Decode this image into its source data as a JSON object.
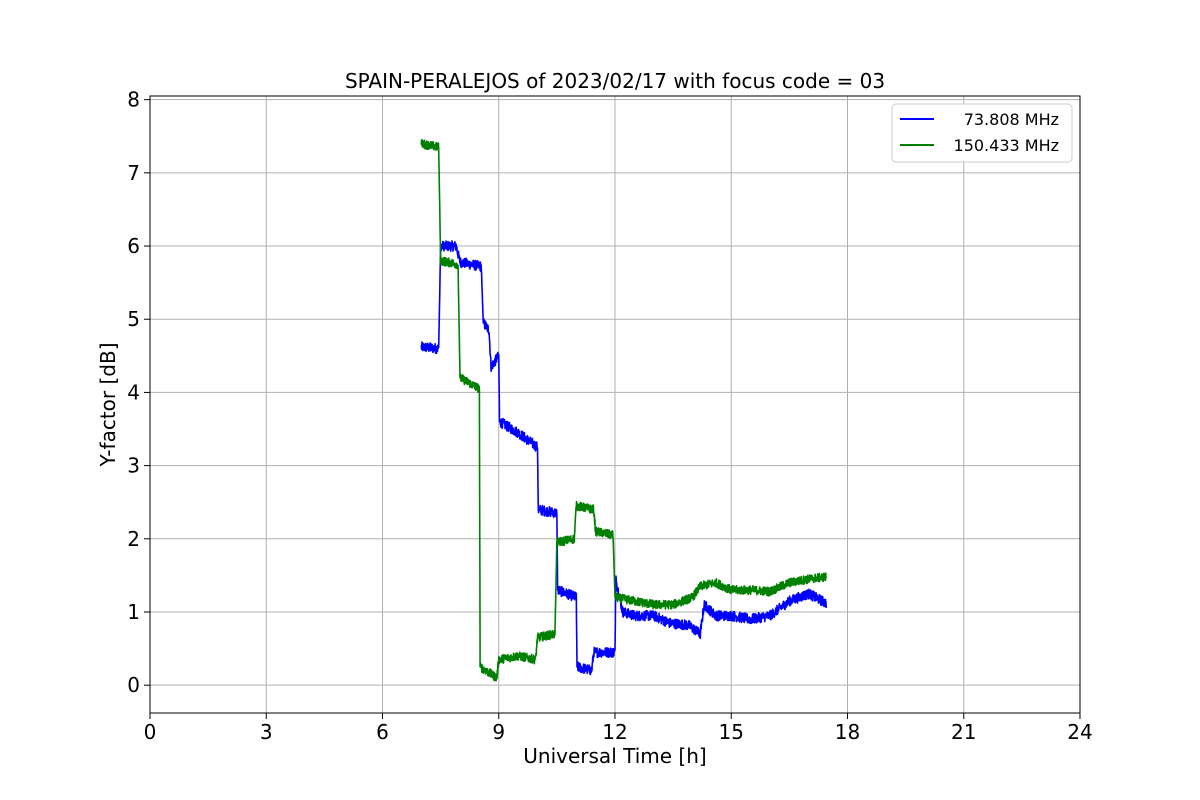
{
  "chart_data": {
    "type": "line",
    "title": "SPAIN-PERALEJOS of 2023/02/17 with focus code = 03",
    "xlabel": "Universal Time [h]",
    "ylabel": "Y-factor [dB]",
    "xlim": [
      0,
      24
    ],
    "ylim": [
      -0.38,
      8.05
    ],
    "xticks": [
      0,
      3,
      6,
      9,
      12,
      15,
      18,
      21,
      24
    ],
    "yticks": [
      0,
      1,
      2,
      3,
      4,
      5,
      6,
      7,
      8
    ],
    "grid": true,
    "legend_position": "top-right",
    "series": [
      {
        "name": "73.808 MHz",
        "color": "#0000ff",
        "noise": 0.07,
        "points": [
          [
            7.0,
            4.62
          ],
          [
            7.45,
            4.6
          ],
          [
            7.5,
            6.0
          ],
          [
            7.9,
            6.0
          ],
          [
            8.0,
            5.78
          ],
          [
            8.55,
            5.72
          ],
          [
            8.6,
            4.95
          ],
          [
            8.75,
            4.85
          ],
          [
            8.8,
            4.35
          ],
          [
            9.0,
            4.5
          ],
          [
            9.02,
            3.6
          ],
          [
            9.5,
            3.45
          ],
          [
            10.0,
            3.25
          ],
          [
            10.02,
            2.4
          ],
          [
            10.5,
            2.35
          ],
          [
            10.52,
            1.3
          ],
          [
            11.0,
            1.2
          ],
          [
            11.02,
            0.25
          ],
          [
            11.4,
            0.2
          ],
          [
            11.45,
            0.45
          ],
          [
            12.0,
            0.45
          ],
          [
            12.02,
            1.45
          ],
          [
            12.2,
            1.0
          ],
          [
            12.5,
            0.95
          ],
          [
            13.0,
            0.95
          ],
          [
            13.4,
            0.85
          ],
          [
            13.9,
            0.82
          ],
          [
            14.2,
            0.7
          ],
          [
            14.3,
            1.1
          ],
          [
            14.6,
            0.95
          ],
          [
            15.0,
            0.95
          ],
          [
            15.5,
            0.9
          ],
          [
            16.0,
            0.95
          ],
          [
            16.5,
            1.15
          ],
          [
            17.0,
            1.25
          ],
          [
            17.45,
            1.12
          ]
        ]
      },
      {
        "name": "150.433 MHz",
        "color": "#008000",
        "noise": 0.06,
        "points": [
          [
            7.0,
            7.4
          ],
          [
            7.45,
            7.35
          ],
          [
            7.5,
            5.8
          ],
          [
            7.95,
            5.75
          ],
          [
            8.0,
            4.2
          ],
          [
            8.5,
            4.05
          ],
          [
            8.52,
            0.25
          ],
          [
            8.95,
            0.1
          ],
          [
            9.0,
            0.35
          ],
          [
            9.5,
            0.4
          ],
          [
            9.95,
            0.35
          ],
          [
            10.0,
            0.65
          ],
          [
            10.45,
            0.7
          ],
          [
            10.5,
            1.95
          ],
          [
            10.95,
            2.0
          ],
          [
            11.0,
            2.45
          ],
          [
            11.45,
            2.4
          ],
          [
            11.5,
            2.1
          ],
          [
            11.95,
            2.05
          ],
          [
            12.0,
            1.2
          ],
          [
            12.5,
            1.15
          ],
          [
            13.0,
            1.1
          ],
          [
            13.5,
            1.1
          ],
          [
            14.0,
            1.2
          ],
          [
            14.2,
            1.35
          ],
          [
            14.6,
            1.4
          ],
          [
            15.0,
            1.3
          ],
          [
            15.5,
            1.3
          ],
          [
            16.0,
            1.28
          ],
          [
            16.5,
            1.4
          ],
          [
            17.0,
            1.45
          ],
          [
            17.45,
            1.48
          ]
        ]
      }
    ]
  }
}
